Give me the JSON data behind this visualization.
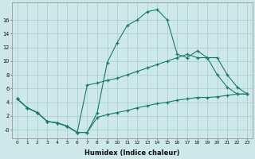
{
  "xlabel": "Humidex (Indice chaleur)",
  "line_color": "#1a7a6a",
  "bg_color": "#cce8e8",
  "grid_color": "#b0d0d0",
  "line1_x": [
    0,
    1,
    2,
    3,
    4,
    5,
    6,
    7,
    8,
    9,
    10,
    11,
    12,
    13,
    14,
    15,
    16,
    17,
    18,
    19,
    20,
    21,
    22,
    23
  ],
  "line1_y": [
    4.5,
    3.2,
    2.5,
    1.2,
    1.0,
    0.5,
    -0.4,
    -0.4,
    2.5,
    9.8,
    12.7,
    15.2,
    16.0,
    17.2,
    17.5,
    16.0,
    11.0,
    10.5,
    11.5,
    10.5,
    8.0,
    6.2,
    5.2,
    5.2
  ],
  "line2_x": [
    0,
    1,
    2,
    3,
    4,
    5,
    6,
    7,
    8,
    9,
    10,
    11,
    12,
    13,
    14,
    15,
    16,
    17,
    18,
    19,
    20,
    21,
    22,
    23
  ],
  "line2_y": [
    4.5,
    3.2,
    2.5,
    1.2,
    1.0,
    0.5,
    -0.4,
    6.5,
    6.8,
    7.2,
    7.5,
    8.0,
    8.5,
    9.0,
    9.5,
    10.0,
    10.5,
    11.0,
    10.5,
    10.5,
    10.5,
    8.0,
    6.2,
    5.2
  ],
  "line3_x": [
    0,
    1,
    2,
    3,
    4,
    5,
    6,
    7,
    8,
    9,
    10,
    11,
    12,
    13,
    14,
    15,
    16,
    17,
    18,
    19,
    20,
    21,
    22,
    23
  ],
  "line3_y": [
    4.5,
    3.2,
    2.5,
    1.2,
    1.0,
    0.5,
    -0.4,
    -0.4,
    1.8,
    2.2,
    2.5,
    2.8,
    3.2,
    3.5,
    3.8,
    4.0,
    4.3,
    4.5,
    4.7,
    4.7,
    4.8,
    5.0,
    5.2,
    5.2
  ],
  "ylim": [
    -1.2,
    18.5
  ],
  "xlim": [
    -0.5,
    23.5
  ],
  "yticks": [
    0,
    2,
    4,
    6,
    8,
    10,
    12,
    14,
    16
  ],
  "ytick_labels": [
    "-0",
    "2",
    "4",
    "6",
    "8",
    "10",
    "12",
    "14",
    "16"
  ],
  "xticks": [
    0,
    1,
    2,
    3,
    4,
    5,
    6,
    7,
    8,
    9,
    10,
    11,
    12,
    13,
    14,
    15,
    16,
    17,
    18,
    19,
    20,
    21,
    22,
    23
  ]
}
